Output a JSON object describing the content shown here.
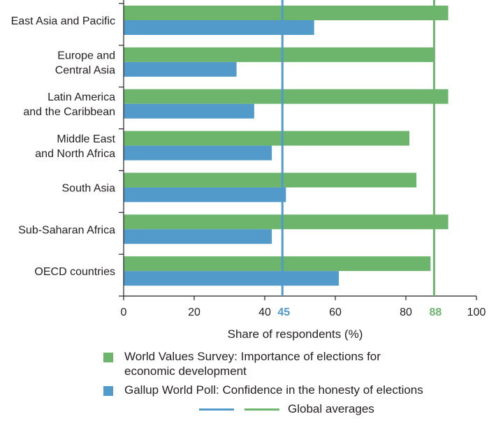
{
  "chart_data": {
    "type": "bar",
    "orientation": "horizontal",
    "categories": [
      [
        "East Asia and Pacific"
      ],
      [
        "Europe and",
        "Central Asia"
      ],
      [
        "Latin America",
        "and the Caribbean"
      ],
      [
        "Middle East",
        "and North Africa"
      ],
      [
        "South Asia"
      ],
      [
        "Sub-Saharan Africa"
      ],
      [
        "OECD countries"
      ]
    ],
    "series": [
      {
        "name": "World Values Survey: Importance of elections for economic development",
        "color": "#6db56d",
        "values": [
          92,
          88,
          92,
          81,
          83,
          92,
          87
        ]
      },
      {
        "name": "Gallup World Poll: Confidence in the honesty of elections",
        "color": "#519ac9",
        "values": [
          54,
          32,
          37,
          42,
          46,
          42,
          61
        ]
      }
    ],
    "reference_lines": [
      {
        "value": 45,
        "label": "45",
        "color": "#519ac9"
      },
      {
        "value": 88,
        "label": "88",
        "color": "#6db56d"
      }
    ],
    "xlim": [
      0,
      100
    ],
    "xticks": [
      "0",
      "20",
      "40",
      "60",
      "80",
      "100"
    ],
    "xtick_values": [
      0,
      20,
      40,
      60,
      80,
      100
    ],
    "xlabel": "Share of respondents (%)",
    "ylabel": "",
    "title": "",
    "grid": false,
    "legend": {
      "placement": "bottom",
      "items": [
        {
          "lines": [
            "World Values Survey: Importance of elections for",
            "economic development"
          ],
          "color": "#6db56d"
        },
        {
          "lines": [
            "Gallup World Poll: Confidence in the honesty of elections"
          ],
          "color": "#519ac9"
        }
      ],
      "averages_label": "Global averages"
    }
  }
}
